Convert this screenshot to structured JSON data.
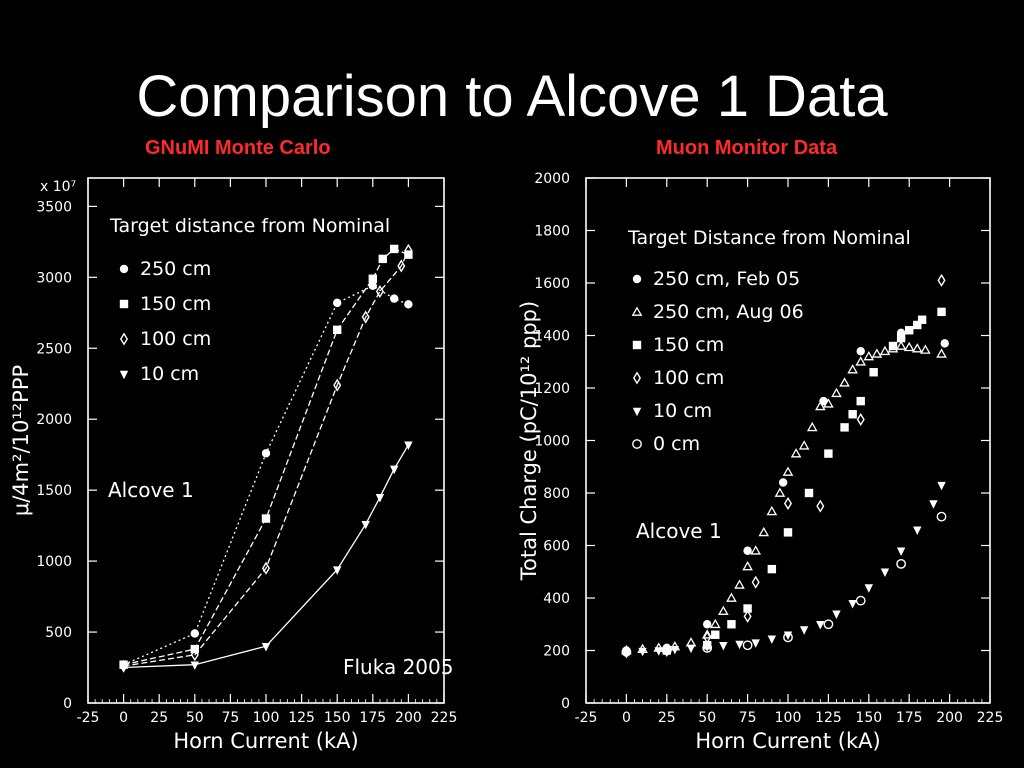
{
  "slide": {
    "title": "Comparison to Alcove 1 Data",
    "left_panel_title": "GNuMI Monte Carlo",
    "right_panel_title": "Muon Monitor Data"
  },
  "chart_data": [
    {
      "type": "scatter",
      "title": "",
      "xlabel": "Horn Current (kA)",
      "ylabel": "μ/4m²/10¹²PPP",
      "y_multiplier": "x 10⁷",
      "xlim": [
        -25,
        225
      ],
      "ylim": [
        0,
        3700
      ],
      "xticks": [
        -25,
        0,
        25,
        50,
        75,
        100,
        125,
        150,
        175,
        200,
        225
      ],
      "yticks": [
        0,
        500,
        1000,
        1500,
        2000,
        2500,
        3000,
        3500
      ],
      "grid": false,
      "legend_title": "Target distance from Nominal",
      "legend_position": "top-left",
      "annotations": [
        "Alcove 1",
        "Fluka 2005"
      ],
      "series": [
        {
          "name": "250 cm",
          "marker": "filled-circle",
          "curve": "dotted",
          "x": [
            0,
            50,
            100,
            150,
            175,
            190,
            200
          ],
          "y": [
            270,
            490,
            1760,
            2820,
            2940,
            2850,
            2810
          ]
        },
        {
          "name": "150 cm",
          "marker": "filled-square",
          "curve": "dashed",
          "x": [
            0,
            50,
            100,
            150,
            175,
            182,
            190,
            200
          ],
          "y": [
            270,
            380,
            1300,
            2630,
            2990,
            3130,
            3200,
            3160
          ]
        },
        {
          "name": "100 cm",
          "marker": "open-diamond",
          "curve": "dashed",
          "x": [
            0,
            50,
            100,
            150,
            170,
            180,
            195,
            200
          ],
          "y": [
            260,
            340,
            950,
            2240,
            2720,
            2900,
            3080,
            3190
          ]
        },
        {
          "name": "10 cm",
          "marker": "filled-triangle-down",
          "curve": "solid",
          "x": [
            0,
            50,
            100,
            150,
            170,
            180,
            190,
            200
          ],
          "y": [
            250,
            270,
            400,
            940,
            1260,
            1450,
            1650,
            1820
          ]
        }
      ]
    },
    {
      "type": "scatter",
      "title": "",
      "xlabel": "Horn Current (kA)",
      "ylabel": "Total Charge (pC/10¹² ppp)",
      "xlim": [
        -25,
        225
      ],
      "ylim": [
        0,
        2000
      ],
      "xticks": [
        -25,
        0,
        25,
        50,
        75,
        100,
        125,
        150,
        175,
        200,
        225
      ],
      "yticks": [
        0,
        200,
        400,
        600,
        800,
        1000,
        1200,
        1400,
        1600,
        1800,
        2000
      ],
      "grid": false,
      "legend_title": "Target Distance from Nominal",
      "legend_position": "top-left",
      "annotations": [
        "Alcove 1"
      ],
      "series": [
        {
          "name": "250 cm, Feb 05",
          "marker": "filled-circle",
          "x": [
            0,
            25,
            50,
            75,
            97,
            122,
            145,
            170,
            197
          ],
          "y": [
            200,
            210,
            300,
            580,
            840,
            1150,
            1340,
            1410,
            1370
          ]
        },
        {
          "name": "250 cm, Aug 06",
          "marker": "open-triangle-up",
          "x": [
            0,
            10,
            20,
            30,
            40,
            50,
            55,
            60,
            65,
            70,
            75,
            80,
            85,
            90,
            95,
            100,
            105,
            110,
            115,
            120,
            125,
            130,
            135,
            140,
            145,
            150,
            155,
            160,
            165,
            170,
            175,
            180,
            185,
            195
          ],
          "y": [
            200,
            205,
            210,
            215,
            230,
            260,
            300,
            350,
            400,
            450,
            520,
            580,
            650,
            730,
            800,
            880,
            950,
            980,
            1050,
            1130,
            1140,
            1180,
            1220,
            1270,
            1300,
            1320,
            1330,
            1340,
            1350,
            1360,
            1355,
            1350,
            1345,
            1330
          ]
        },
        {
          "name": "150 cm",
          "marker": "filled-square",
          "x": [
            25,
            50,
            55,
            65,
            75,
            90,
            100,
            113,
            125,
            135,
            140,
            145,
            153,
            165,
            170,
            175,
            180,
            183,
            195
          ],
          "y": [
            200,
            220,
            260,
            300,
            360,
            510,
            650,
            800,
            950,
            1050,
            1100,
            1150,
            1260,
            1360,
            1390,
            1420,
            1440,
            1460,
            1490
          ]
        },
        {
          "name": "100 cm",
          "marker": "open-diamond",
          "x": [
            0,
            25,
            50,
            75,
            80,
            100,
            120,
            145,
            170,
            195
          ],
          "y": [
            195,
            200,
            250,
            330,
            460,
            760,
            750,
            1080,
            1400,
            1610
          ]
        },
        {
          "name": "10 cm",
          "marker": "filled-triangle-down",
          "x": [
            0,
            10,
            20,
            30,
            40,
            50,
            60,
            70,
            80,
            90,
            100,
            110,
            120,
            130,
            140,
            150,
            160,
            170,
            180,
            190,
            195
          ],
          "y": [
            195,
            198,
            200,
            205,
            210,
            215,
            220,
            225,
            230,
            245,
            260,
            280,
            300,
            340,
            380,
            440,
            500,
            580,
            660,
            760,
            830
          ]
        },
        {
          "name": "0 cm",
          "marker": "open-circle",
          "x": [
            0,
            25,
            50,
            75,
            100,
            125,
            145,
            170,
            195
          ],
          "y": [
            195,
            200,
            210,
            220,
            250,
            300,
            390,
            530,
            710
          ]
        }
      ]
    }
  ]
}
